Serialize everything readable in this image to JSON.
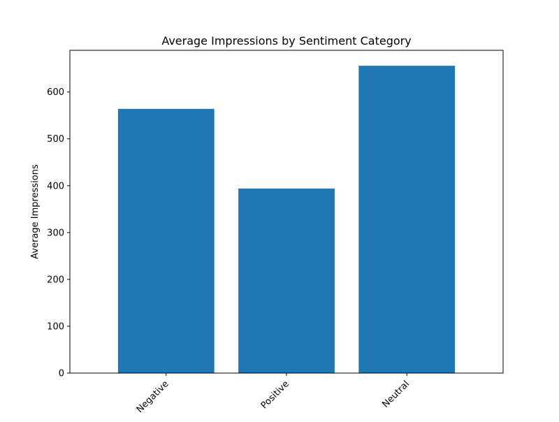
{
  "chart_data": {
    "type": "bar",
    "title": "Average Impressions by Sentiment Category",
    "xlabel": "",
    "ylabel": "Average Impressions",
    "categories": [
      "Negative",
      "Positive",
      "Neutral"
    ],
    "values": [
      564,
      394,
      656
    ],
    "ylim": [
      0,
      689
    ],
    "yticks": [
      0,
      100,
      200,
      300,
      400,
      500,
      600
    ],
    "bar_color": "#1f77b4",
    "grid": false,
    "legend": "none"
  }
}
